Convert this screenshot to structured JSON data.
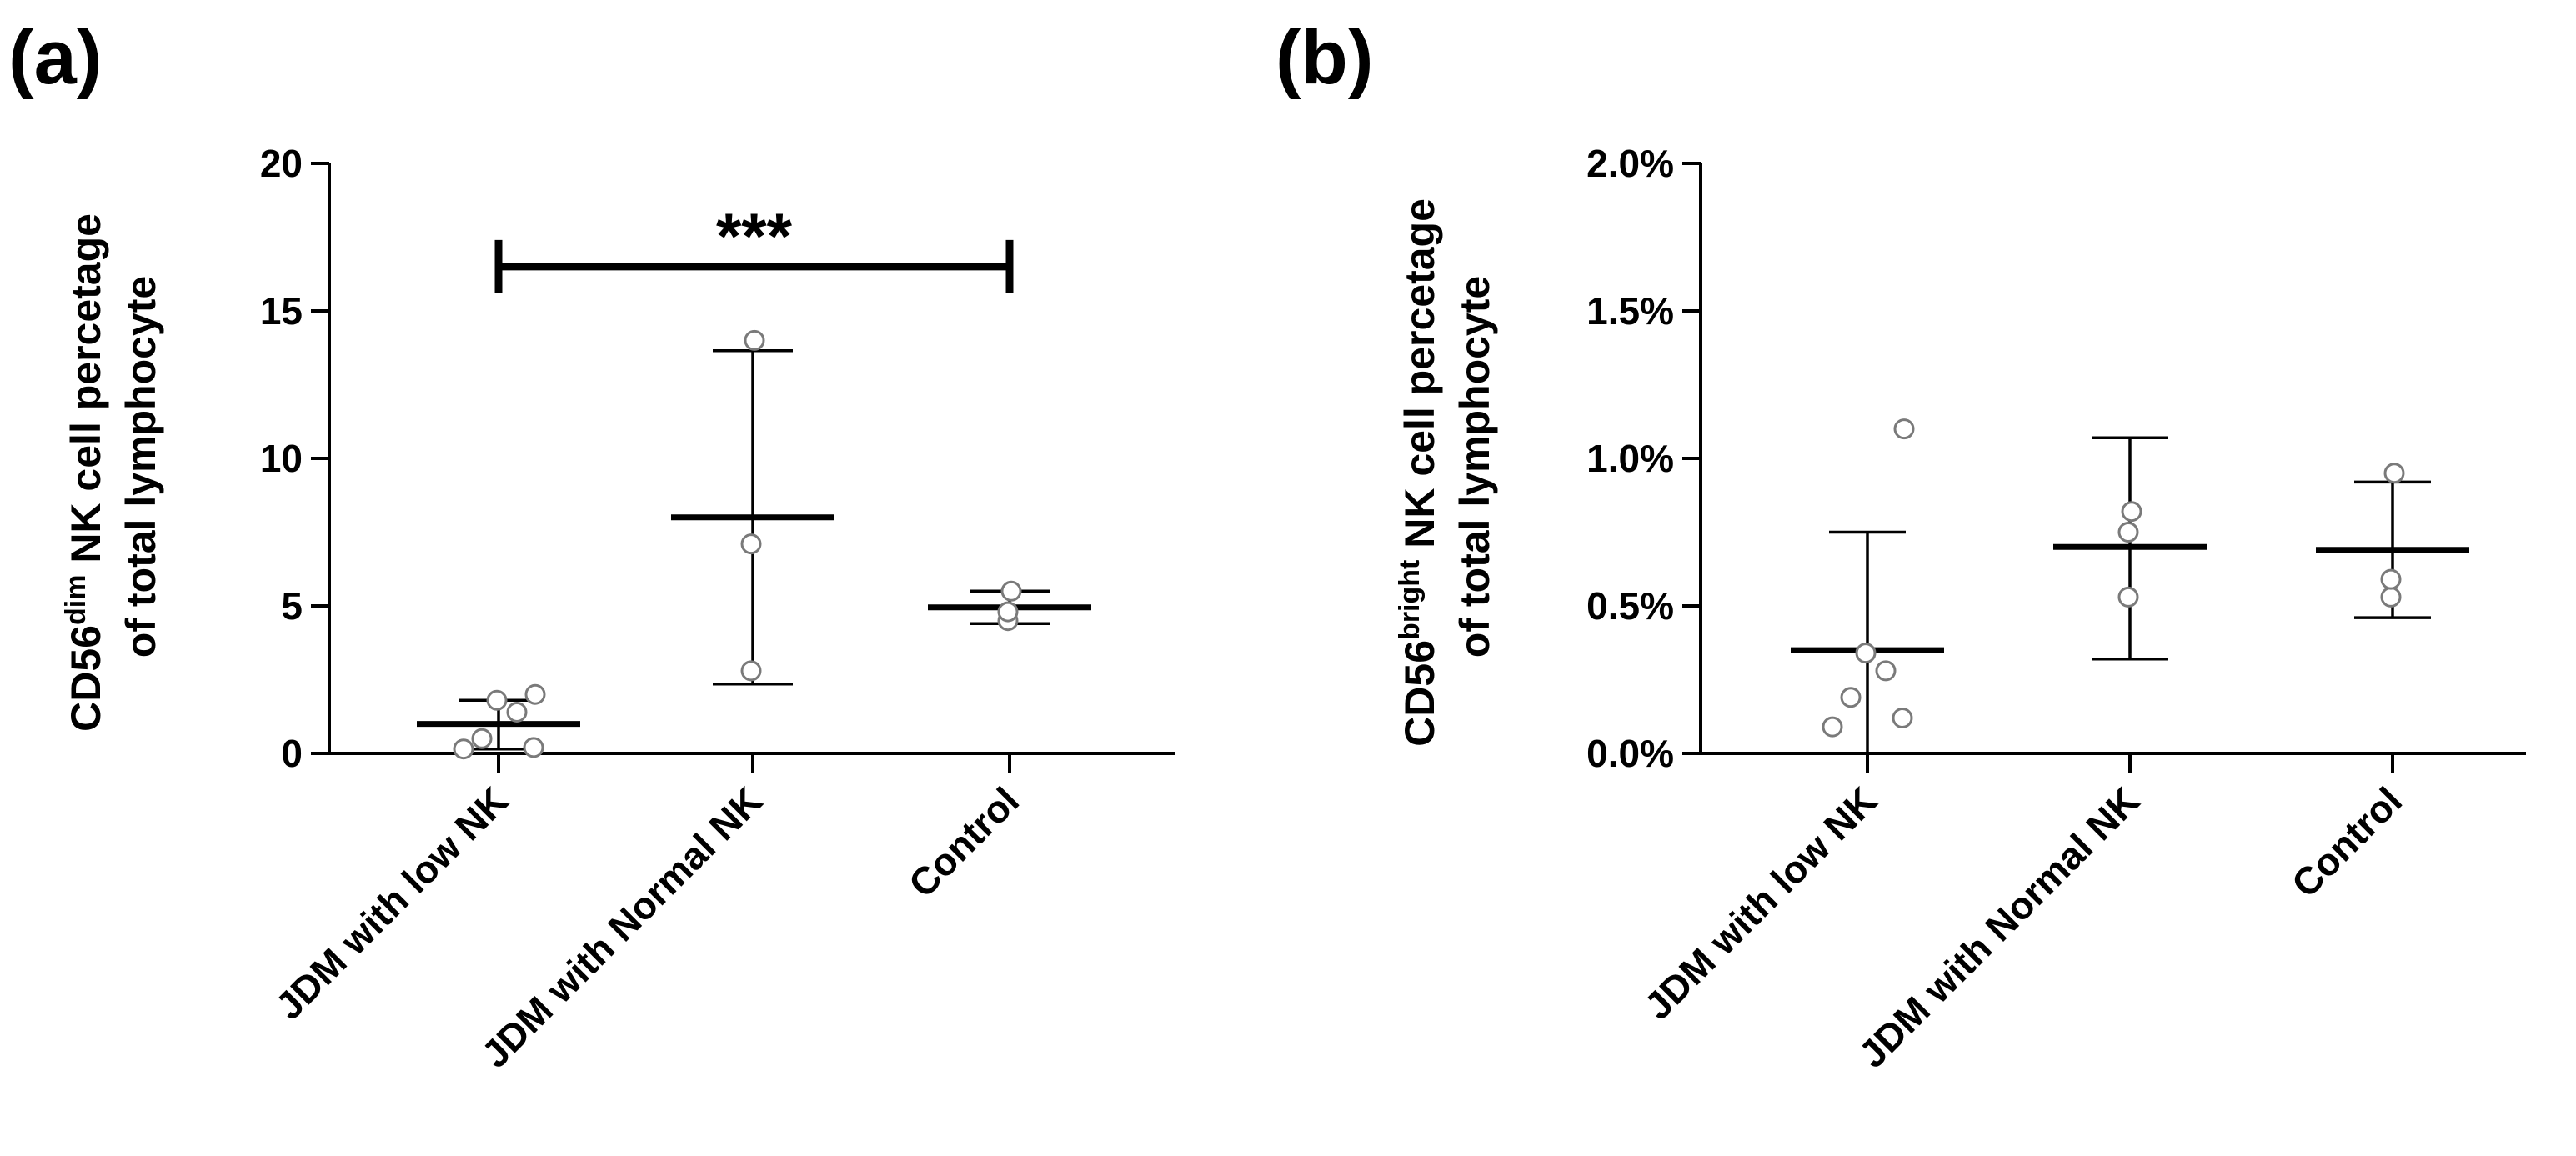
{
  "chart_data": [
    {
      "type": "scatter",
      "panel_label": "(a)",
      "ylabel_main": "CD56",
      "ylabel_sup": "dim",
      "ylabel_rest": " NK cell percetage",
      "ylabel_line2": "of total lymphocyte",
      "categories": [
        "JDM with low NK",
        "JDM with Normal NK",
        "Control"
      ],
      "ylim": [
        0,
        20
      ],
      "yticks": [
        0,
        5,
        10,
        15,
        20
      ],
      "ytick_labels": [
        "0",
        "5",
        "10",
        "15",
        "20"
      ],
      "groups": [
        {
          "name": "JDM with low NK",
          "mean": 1.0,
          "err_low": 0.15,
          "err_high": 1.8,
          "points": [
            0.15,
            0.2,
            0.5,
            1.4,
            1.8,
            2.0
          ]
        },
        {
          "name": "JDM with Normal NK",
          "mean": 8.0,
          "err_low": 2.35,
          "err_high": 13.65,
          "points": [
            2.8,
            7.1,
            14.0
          ]
        },
        {
          "name": "Control",
          "mean": 4.95,
          "err_low": 4.4,
          "err_high": 5.5,
          "points": [
            4.5,
            4.8,
            5.5
          ]
        }
      ],
      "significance": {
        "from": "JDM with low NK",
        "to": "Control",
        "y": 16.5,
        "label": "***"
      }
    },
    {
      "type": "scatter",
      "panel_label": "(b)",
      "ylabel_main": "CD56",
      "ylabel_sup": "bright",
      "ylabel_rest": " NK cell percetage",
      "ylabel_line2": "of total lymphocyte",
      "categories": [
        "JDM with low NK",
        "JDM with Normal NK",
        "Control"
      ],
      "ylim": [
        0,
        2.0
      ],
      "yticks": [
        0,
        0.5,
        1.0,
        1.5,
        2.0
      ],
      "ytick_labels": [
        "0.0%",
        "0.5%",
        "1.0%",
        "1.5%",
        "2.0%"
      ],
      "groups": [
        {
          "name": "JDM with low NK",
          "mean": 0.35,
          "err_low": 0.0,
          "err_high": 0.75,
          "points": [
            0.09,
            0.12,
            0.19,
            0.28,
            0.34,
            1.1
          ]
        },
        {
          "name": "JDM with Normal NK",
          "mean": 0.7,
          "err_low": 0.32,
          "err_high": 1.07,
          "points": [
            0.53,
            0.75,
            0.82
          ]
        },
        {
          "name": "Control",
          "mean": 0.69,
          "err_low": 0.46,
          "err_high": 0.92,
          "points": [
            0.53,
            0.59,
            0.95
          ]
        }
      ],
      "significance": null
    }
  ]
}
